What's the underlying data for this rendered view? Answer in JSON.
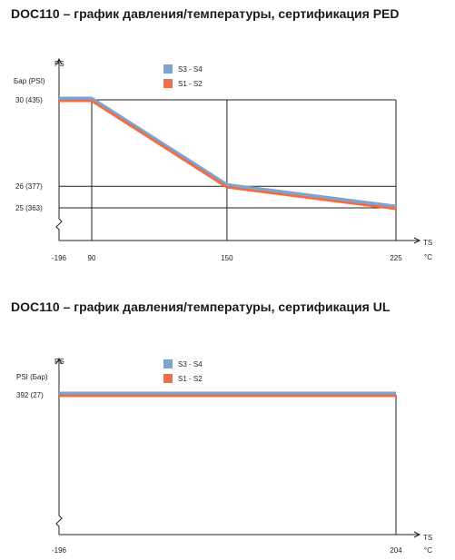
{
  "chart_data": [
    {
      "type": "line",
      "title": "DOC110 – график давления/температуры, сертификация PED",
      "ylabel": "PS",
      "xlabel": "TS",
      "y_unit_label": "Бар (PSI)",
      "x_unit_label": "°C",
      "x_ticks": [
        "-196",
        "90",
        "150",
        "225"
      ],
      "y_ticks": [
        "30  (435)",
        "26  (377)",
        "25  (363)"
      ],
      "grid": true,
      "legend_position": "top-center",
      "series": [
        {
          "name": "S3 - S4",
          "color": "#7fa3d1",
          "x": [
            -196,
            90,
            150,
            225
          ],
          "y": [
            30,
            30,
            26,
            25
          ]
        },
        {
          "name": "S1 - S2",
          "color": "#e8704a",
          "x": [
            -196,
            90,
            150,
            225
          ],
          "y": [
            30,
            30,
            26,
            25
          ]
        }
      ]
    },
    {
      "type": "line",
      "title": "DOC110 – график давления/температуры, сертификация UL",
      "ylabel": "PS",
      "xlabel": "TS",
      "y_unit_label": "PSI  (Бар)",
      "x_unit_label": "°C",
      "x_ticks": [
        "-196",
        "204"
      ],
      "y_ticks": [
        "392  (27)"
      ],
      "grid": false,
      "legend_position": "top-center",
      "series": [
        {
          "name": "S3 - S4",
          "color": "#7fa3d1",
          "x": [
            -196,
            204
          ],
          "y": [
            392,
            392
          ]
        },
        {
          "name": "S1 - S2",
          "color": "#e8704a",
          "x": [
            -196,
            204
          ],
          "y": [
            392,
            392
          ]
        }
      ]
    }
  ]
}
